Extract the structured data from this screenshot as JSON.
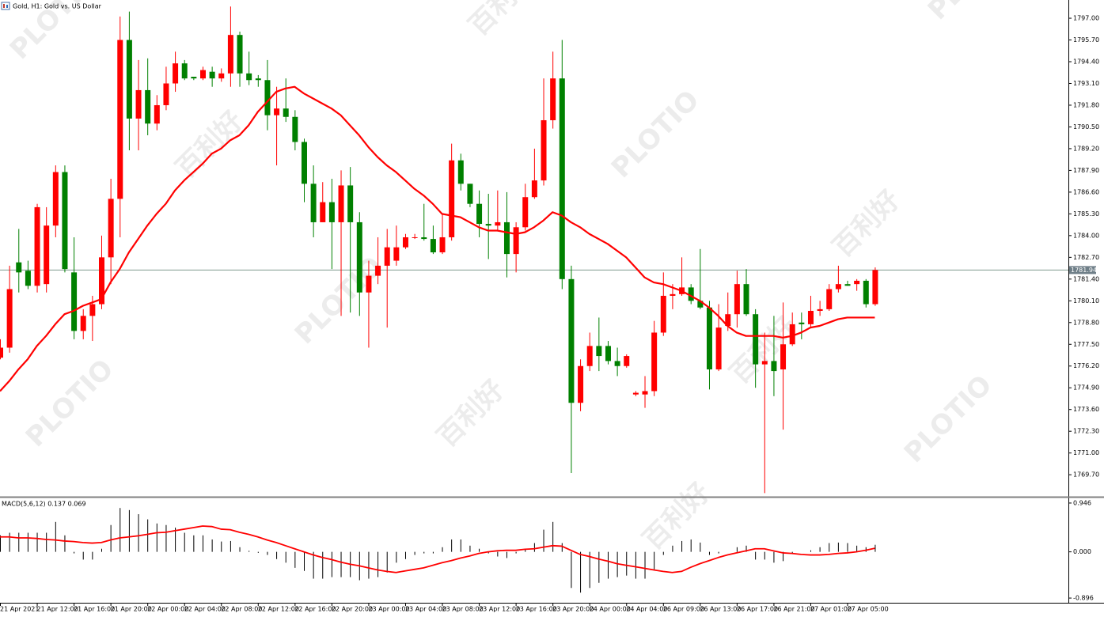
{
  "watermarks": [
    "PLOTIO",
    "百利好"
  ],
  "chart_data": [
    {
      "type": "candlestick",
      "title": "Gold, H1:  Gold vs. US Dollar",
      "up_color": "#ff0000",
      "down_color": "#008000",
      "categories": [
        "21 Apr 2021",
        null,
        null,
        null,
        "21 Apr 12:00",
        null,
        null,
        null,
        "21 Apr 16:00",
        null,
        null,
        null,
        "21 Apr 20:00",
        null,
        null,
        null,
        "22 Apr 00:00",
        null,
        null,
        null,
        "22 Apr 04:00",
        null,
        null,
        null,
        "22 Apr 08:00",
        null,
        null,
        null,
        "22 Apr 12:00",
        null,
        null,
        null,
        "22 Apr 16:00",
        null,
        null,
        null,
        "22 Apr 20:00",
        null,
        null,
        null,
        "23 Apr 00:00",
        null,
        null,
        null,
        "23 Apr 04:00",
        null,
        null,
        null,
        "23 Apr 08:00",
        null,
        null,
        null,
        "23 Apr 12:00",
        null,
        null,
        null,
        "23 Apr 16:00",
        null,
        null,
        null,
        "23 Apr 20:00",
        null,
        null,
        null,
        "24 Apr 00:00",
        null,
        null,
        null,
        "24 Apr 04:00",
        null,
        null,
        null,
        "26 Apr 09:00",
        null,
        null,
        null,
        "26 Apr 13:00",
        null,
        null,
        null,
        "26 Apr 17:00",
        null,
        null,
        null,
        "26 Apr 21:00",
        null,
        null,
        null,
        "27 Apr 01:00",
        null,
        null,
        null,
        "27 Apr 05:00",
        null,
        null,
        null
      ],
      "open": [
        1776.7,
        1777.3,
        1782.4,
        1781.9,
        1781.0,
        1781.1,
        1784.6,
        1787.8,
        1781.8,
        1778.3,
        1779.2,
        1779.9,
        1782.7,
        1786.2,
        1795.7,
        1791.0,
        1792.7,
        1790.7,
        1791.8,
        1793.1,
        1794.3,
        1793.5,
        1793.4,
        1793.8,
        1793.4,
        1793.7,
        1796.0,
        1793.7,
        1793.4,
        1793.3,
        1791.2,
        1791.6,
        1791.1,
        1789.6,
        1787.1,
        1784.8,
        1786.0,
        1784.8,
        1787.0,
        1784.8,
        1780.6,
        1781.6,
        1782.2,
        1782.5,
        1783.3,
        1783.9,
        1783.9,
        1783.8,
        1783.0,
        1783.9,
        1788.5,
        1787.1,
        1785.9,
        1784.7,
        1784.6,
        1784.8,
        1782.9,
        1784.5,
        1786.3,
        1787.3,
        1790.9,
        1793.4,
        1781.4,
        1774.0,
        1776.2,
        1777.4,
        1777.4,
        1776.5,
        1776.2,
        1774.5,
        1774.5,
        1774.7,
        1778.2,
        1780.4,
        1780.5,
        1780.9,
        1780.1,
        1779.7,
        1776.0,
        1778.6,
        1779.3,
        1781.1,
        1779.3,
        1776.3,
        1776.5,
        1776.0,
        1777.5,
        1778.8,
        1778.7,
        1779.5,
        1779.6,
        1780.8,
        1781.1,
        1781.1,
        1781.3,
        1779.9
      ],
      "high": [
        1777.8,
        1782.2,
        1784.4,
        1782.5,
        1785.9,
        1785.7,
        1788.2,
        1788.2,
        1783.9,
        1779.6,
        1780.4,
        1784.0,
        1787.4,
        1797.1,
        1797.4,
        1794.5,
        1794.6,
        1792.4,
        1794.1,
        1795.0,
        1794.5,
        1793.5,
        1794.1,
        1794.1,
        1794.0,
        1797.7,
        1796.2,
        1795.0,
        1793.6,
        1794.5,
        1792.9,
        1793.4,
        1791.5,
        1789.8,
        1788.2,
        1787.2,
        1787.4,
        1787.9,
        1788.1,
        1785.4,
        1782.5,
        1783.9,
        1784.4,
        1784.6,
        1784.1,
        1784.1,
        1785.9,
        1784.6,
        1785.3,
        1789.5,
        1788.9,
        1787.1,
        1786.7,
        1786.5,
        1786.7,
        1786.6,
        1784.8,
        1787.1,
        1789.2,
        1793.4,
        1795.0,
        1795.7,
        1782.2,
        1776.6,
        1778.2,
        1779.1,
        1777.7,
        1777.3,
        1776.9,
        1774.7,
        1775.6,
        1778.9,
        1781.8,
        1781.1,
        1782.7,
        1781.1,
        1783.2,
        1780.1,
        1779.9,
        1780.6,
        1781.9,
        1782.0,
        1779.6,
        1778.2,
        1779.2,
        1780.0,
        1779.4,
        1779.4,
        1780.4,
        1780.1,
        1781.1,
        1782.2,
        1781.3,
        1781.4,
        1781.4,
        1782.1
      ],
      "low": [
        1776.6,
        1777.0,
        1780.6,
        1780.8,
        1780.6,
        1780.6,
        1783.9,
        1781.8,
        1777.8,
        1777.8,
        1777.7,
        1779.6,
        1781.1,
        1783.9,
        1789.1,
        1789.1,
        1790.0,
        1790.3,
        1791.5,
        1792.6,
        1793.3,
        1793.3,
        1793.3,
        1792.9,
        1793.2,
        1792.9,
        1792.9,
        1793.0,
        1792.9,
        1790.3,
        1788.2,
        1790.8,
        1789.1,
        1786.0,
        1783.9,
        1784.8,
        1782.0,
        1779.2,
        1779.4,
        1779.2,
        1777.3,
        1781.1,
        1778.5,
        1782.2,
        1783.2,
        1783.8,
        1783.7,
        1782.9,
        1782.9,
        1783.7,
        1786.7,
        1785.7,
        1783.9,
        1782.6,
        1784.3,
        1781.5,
        1781.8,
        1784.3,
        1786.2,
        1787.0,
        1790.4,
        1780.8,
        1769.8,
        1773.5,
        1775.9,
        1775.9,
        1776.3,
        1775.6,
        1776.1,
        1774.4,
        1773.7,
        1774.4,
        1778.0,
        1779.6,
        1780.4,
        1779.9,
        1779.6,
        1774.8,
        1775.9,
        1778.3,
        1778.5,
        1779.2,
        1774.9,
        1768.6,
        1774.4,
        1772.4,
        1777.4,
        1777.8,
        1778.5,
        1779.2,
        1779.5,
        1780.6,
        1781.0,
        1780.7,
        1779.7,
        1779.8
      ],
      "close": [
        1777.3,
        1780.8,
        1781.8,
        1781.0,
        1785.7,
        1784.6,
        1787.8,
        1782.0,
        1778.3,
        1779.2,
        1779.9,
        1782.7,
        1786.2,
        1795.7,
        1791.0,
        1792.7,
        1790.7,
        1791.8,
        1793.1,
        1794.3,
        1793.4,
        1793.4,
        1793.9,
        1793.4,
        1793.7,
        1796.0,
        1793.7,
        1793.3,
        1793.3,
        1791.2,
        1791.6,
        1791.1,
        1789.6,
        1787.1,
        1784.8,
        1786.0,
        1784.8,
        1787.0,
        1784.8,
        1780.6,
        1781.6,
        1782.2,
        1783.3,
        1783.3,
        1783.9,
        1783.9,
        1783.8,
        1783.0,
        1783.9,
        1788.5,
        1787.1,
        1785.9,
        1784.7,
        1784.6,
        1784.8,
        1782.9,
        1784.5,
        1786.3,
        1787.3,
        1790.9,
        1793.4,
        1781.4,
        1774.0,
        1776.2,
        1777.4,
        1776.8,
        1776.5,
        1776.2,
        1776.8,
        1774.6,
        1774.7,
        1778.2,
        1780.4,
        1780.5,
        1780.9,
        1780.1,
        1779.7,
        1776.0,
        1778.5,
        1779.3,
        1781.1,
        1779.3,
        1776.3,
        1776.5,
        1775.9,
        1777.5,
        1778.7,
        1778.7,
        1779.5,
        1779.6,
        1780.8,
        1781.1,
        1781.0,
        1781.3,
        1779.9,
        1781.94
      ],
      "ma": {
        "color": "#ff0000",
        "values": [
          1774.7,
          1775.3,
          1776.0,
          1776.6,
          1777.4,
          1778.0,
          1778.7,
          1779.3,
          1779.5,
          1779.8,
          1780.0,
          1780.2,
          1781.2,
          1782.0,
          1783.0,
          1783.8,
          1784.6,
          1785.3,
          1785.9,
          1786.7,
          1787.3,
          1787.8,
          1788.3,
          1788.9,
          1789.2,
          1789.7,
          1790.0,
          1790.6,
          1791.4,
          1792.0,
          1792.6,
          1792.8,
          1792.9,
          1792.5,
          1792.2,
          1791.9,
          1791.6,
          1791.2,
          1790.6,
          1790.0,
          1789.3,
          1788.7,
          1788.2,
          1787.8,
          1787.3,
          1786.8,
          1786.4,
          1785.9,
          1785.3,
          1785.2,
          1785.1,
          1784.8,
          1784.5,
          1784.3,
          1784.3,
          1784.2,
          1784.1,
          1784.2,
          1784.5,
          1784.9,
          1785.4,
          1785.2,
          1784.8,
          1784.5,
          1784.1,
          1783.8,
          1783.5,
          1783.1,
          1782.7,
          1782.1,
          1781.5,
          1781.2,
          1781.1,
          1780.9,
          1780.7,
          1780.4,
          1780.1,
          1779.7,
          1779.2,
          1778.6,
          1778.2,
          1778.0,
          1778.0,
          1778.0,
          1778.0,
          1777.9,
          1778.0,
          1778.2,
          1778.5,
          1778.6,
          1778.8,
          1779.0,
          1779.1,
          1779.1,
          1779.1,
          1779.1
        ]
      },
      "last_price": 1781.94,
      "ylim": [
        1768.43,
        1798.09
      ],
      "yticks": [
        {
          "value": 1797,
          "label": "1797.00"
        },
        {
          "value": 1795.7,
          "label": "1795.70"
        },
        {
          "value": 1794.4,
          "label": "1794.40"
        },
        {
          "value": 1793.1,
          "label": "1793.10"
        },
        {
          "value": 1791.8,
          "label": "1791.80"
        },
        {
          "value": 1790.5,
          "label": "1790.50"
        },
        {
          "value": 1789.2,
          "label": "1789.20"
        },
        {
          "value": 1787.9,
          "label": "1787.90"
        },
        {
          "value": 1786.6,
          "label": "1786.60"
        },
        {
          "value": 1785.3,
          "label": "1785.30"
        },
        {
          "value": 1784,
          "label": "1784.00"
        },
        {
          "value": 1782.7,
          "label": "1782.70"
        },
        {
          "value": 1781.4,
          "label": "1781.40"
        },
        {
          "value": 1780.1,
          "label": "1780.10"
        },
        {
          "value": 1778.8,
          "label": "1778.80"
        },
        {
          "value": 1777.5,
          "label": "1777.50"
        },
        {
          "value": 1776.2,
          "label": "1776.20"
        },
        {
          "value": 1774.9,
          "label": "1774.90"
        },
        {
          "value": 1773.6,
          "label": "1773.60"
        },
        {
          "value": 1772.3,
          "label": "1772.30"
        },
        {
          "value": 1771,
          "label": "1771.00"
        },
        {
          "value": 1769.7,
          "label": "1769.70"
        }
      ]
    },
    {
      "type": "macd",
      "title": "MACD(5,6,12) 0.137 0.069",
      "histogram": {
        "color": "#000000",
        "values": [
          0.32,
          0.37,
          0.37,
          0.37,
          0.37,
          0.37,
          0.58,
          0.32,
          -0.03,
          -0.15,
          -0.15,
          0.06,
          0.52,
          0.85,
          0.81,
          0.73,
          0.63,
          0.55,
          0.52,
          0.47,
          0.37,
          0.32,
          0.32,
          0.24,
          0.2,
          0.21,
          0.09,
          0.02,
          -0.02,
          -0.06,
          -0.14,
          -0.21,
          -0.31,
          -0.37,
          -0.52,
          -0.52,
          -0.49,
          -0.49,
          -0.49,
          -0.55,
          -0.52,
          -0.49,
          -0.4,
          -0.21,
          -0.14,
          -0.06,
          -0.03,
          -0.03,
          0.09,
          0.24,
          0.24,
          0.12,
          0.06,
          -0.03,
          -0.09,
          -0.12,
          -0.03,
          0.06,
          0.17,
          0.43,
          0.58,
          0.17,
          -0.7,
          -0.79,
          -0.7,
          -0.6,
          -0.52,
          -0.49,
          -0.46,
          -0.52,
          -0.52,
          -0.34,
          -0.06,
          0.12,
          0.21,
          0.24,
          0.18,
          -0.06,
          -0.03,
          0.0,
          0.09,
          0.12,
          -0.15,
          -0.15,
          -0.21,
          -0.18,
          -0.03,
          0.0,
          0.03,
          0.09,
          0.17,
          0.18,
          0.17,
          0.12,
          0.09,
          0.137
        ]
      },
      "signal": {
        "color": "#ff0000",
        "values": [
          0.29,
          0.29,
          0.27,
          0.27,
          0.26,
          0.24,
          0.23,
          0.21,
          0.2,
          0.18,
          0.17,
          0.18,
          0.23,
          0.27,
          0.29,
          0.31,
          0.34,
          0.37,
          0.38,
          0.41,
          0.44,
          0.47,
          0.5,
          0.49,
          0.44,
          0.43,
          0.38,
          0.34,
          0.29,
          0.23,
          0.18,
          0.12,
          0.06,
          0.0,
          -0.06,
          -0.11,
          -0.15,
          -0.2,
          -0.24,
          -0.27,
          -0.31,
          -0.35,
          -0.38,
          -0.4,
          -0.37,
          -0.34,
          -0.31,
          -0.26,
          -0.21,
          -0.17,
          -0.12,
          -0.08,
          -0.03,
          0.0,
          0.02,
          0.03,
          0.03,
          0.05,
          0.06,
          0.09,
          0.12,
          0.11,
          0.03,
          -0.05,
          -0.09,
          -0.14,
          -0.18,
          -0.23,
          -0.26,
          -0.29,
          -0.32,
          -0.35,
          -0.38,
          -0.4,
          -0.38,
          -0.3,
          -0.23,
          -0.17,
          -0.11,
          -0.06,
          -0.02,
          0.02,
          0.06,
          0.06,
          0.02,
          -0.02,
          -0.03,
          -0.05,
          -0.06,
          -0.06,
          -0.05,
          -0.03,
          -0.02,
          0.0,
          0.03,
          0.069
        ]
      },
      "ylim": [
        -0.987,
        1.037
      ],
      "yticks": [
        0.946,
        {
          "value": 0,
          "label": "0.000"
        },
        -0.896
      ]
    }
  ]
}
